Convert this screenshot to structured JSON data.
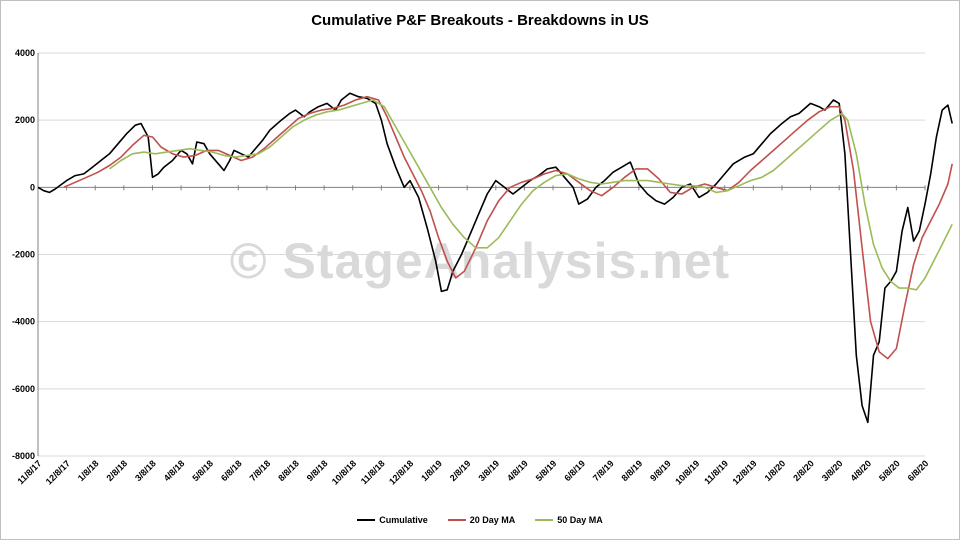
{
  "chart_data": {
    "type": "line",
    "title": "Cumulative P&F Breakouts - Breakdowns in US",
    "watermark": "© StageAnalysis.net",
    "ylim": [
      -8000,
      4000
    ],
    "yticks": [
      4000,
      2000,
      0,
      -2000,
      -4000,
      -6000,
      -8000
    ],
    "ytick_labels": [
      "4000",
      "2000",
      "0",
      "-2000",
      "-4000",
      "-6000",
      "-8000"
    ],
    "grid": true,
    "legend_placement": "bottom",
    "x_dates": [
      "11/8/17",
      "12/8/17",
      "1/8/18",
      "2/8/18",
      "3/8/18",
      "4/8/18",
      "5/8/18",
      "6/8/18",
      "7/8/18",
      "8/8/18",
      "9/8/18",
      "10/8/18",
      "11/8/18",
      "12/8/18",
      "1/8/19",
      "2/8/19",
      "3/8/19",
      "4/8/19",
      "5/8/19",
      "6/8/19",
      "7/8/19",
      "8/8/19",
      "9/8/19",
      "10/8/19",
      "11/8/19",
      "12/8/19",
      "1/8/20",
      "2/8/20",
      "3/8/20",
      "4/8/20",
      "5/8/20",
      "6/8/20"
    ],
    "series": [
      {
        "name": "Cumulative",
        "color": "#000000",
        "points": [
          [
            0,
            0
          ],
          [
            0.2,
            -100
          ],
          [
            0.4,
            -150
          ],
          [
            0.6,
            -50
          ],
          [
            1.0,
            200
          ],
          [
            1.3,
            350
          ],
          [
            1.6,
            400
          ],
          [
            1.9,
            600
          ],
          [
            2.2,
            800
          ],
          [
            2.5,
            1000
          ],
          [
            2.8,
            1300
          ],
          [
            3.1,
            1600
          ],
          [
            3.4,
            1850
          ],
          [
            3.6,
            1900
          ],
          [
            3.85,
            1500
          ],
          [
            4.0,
            300
          ],
          [
            4.2,
            400
          ],
          [
            4.4,
            600
          ],
          [
            4.7,
            800
          ],
          [
            5.0,
            1100
          ],
          [
            5.2,
            1000
          ],
          [
            5.4,
            700
          ],
          [
            5.55,
            1350
          ],
          [
            5.8,
            1300
          ],
          [
            6.0,
            1000
          ],
          [
            6.3,
            700
          ],
          [
            6.5,
            500
          ],
          [
            6.7,
            800
          ],
          [
            6.85,
            1100
          ],
          [
            7.1,
            1000
          ],
          [
            7.35,
            900
          ],
          [
            7.55,
            1100
          ],
          [
            7.85,
            1400
          ],
          [
            8.1,
            1700
          ],
          [
            8.5,
            2000
          ],
          [
            8.8,
            2200
          ],
          [
            9.0,
            2300
          ],
          [
            9.3,
            2100
          ],
          [
            9.5,
            2250
          ],
          [
            9.8,
            2400
          ],
          [
            10.1,
            2500
          ],
          [
            10.4,
            2300
          ],
          [
            10.6,
            2600
          ],
          [
            10.9,
            2800
          ],
          [
            11.2,
            2700
          ],
          [
            11.5,
            2650
          ],
          [
            11.8,
            2500
          ],
          [
            12.0,
            2000
          ],
          [
            12.2,
            1300
          ],
          [
            12.5,
            600
          ],
          [
            12.8,
            0
          ],
          [
            13.0,
            200
          ],
          [
            13.3,
            -300
          ],
          [
            13.6,
            -1200
          ],
          [
            13.9,
            -2200
          ],
          [
            14.1,
            -3100
          ],
          [
            14.3,
            -3050
          ],
          [
            14.5,
            -2500
          ],
          [
            14.8,
            -2000
          ],
          [
            15.1,
            -1400
          ],
          [
            15.4,
            -800
          ],
          [
            15.7,
            -200
          ],
          [
            16.0,
            200
          ],
          [
            16.3,
            0
          ],
          [
            16.6,
            -200
          ],
          [
            16.9,
            0
          ],
          [
            17.2,
            200
          ],
          [
            17.5,
            350
          ],
          [
            17.8,
            550
          ],
          [
            18.1,
            600
          ],
          [
            18.4,
            300
          ],
          [
            18.7,
            0
          ],
          [
            18.9,
            -500
          ],
          [
            19.2,
            -350
          ],
          [
            19.5,
            0
          ],
          [
            19.8,
            200
          ],
          [
            20.1,
            450
          ],
          [
            20.4,
            600
          ],
          [
            20.7,
            750
          ],
          [
            21.0,
            100
          ],
          [
            21.3,
            -200
          ],
          [
            21.6,
            -400
          ],
          [
            21.9,
            -500
          ],
          [
            22.2,
            -300
          ],
          [
            22.5,
            0
          ],
          [
            22.8,
            100
          ],
          [
            23.1,
            -300
          ],
          [
            23.4,
            -150
          ],
          [
            23.7,
            100
          ],
          [
            24.0,
            400
          ],
          [
            24.3,
            700
          ],
          [
            24.7,
            900
          ],
          [
            25.0,
            1000
          ],
          [
            25.3,
            1300
          ],
          [
            25.6,
            1600
          ],
          [
            26.0,
            1900
          ],
          [
            26.3,
            2100
          ],
          [
            26.6,
            2200
          ],
          [
            27.0,
            2500
          ],
          [
            27.3,
            2400
          ],
          [
            27.5,
            2300
          ],
          [
            27.8,
            2600
          ],
          [
            28.0,
            2500
          ],
          [
            28.2,
            1000
          ],
          [
            28.4,
            -2000
          ],
          [
            28.6,
            -5000
          ],
          [
            28.8,
            -6500
          ],
          [
            29.0,
            -7000
          ],
          [
            29.2,
            -5000
          ],
          [
            29.4,
            -4600
          ],
          [
            29.6,
            -3000
          ],
          [
            29.8,
            -2800
          ],
          [
            30.0,
            -2500
          ],
          [
            30.2,
            -1300
          ],
          [
            30.4,
            -600
          ],
          [
            30.6,
            -1600
          ],
          [
            30.8,
            -1300
          ],
          [
            31.0,
            -500
          ],
          [
            31.2,
            400
          ],
          [
            31.4,
            1500
          ],
          [
            31.6,
            2300
          ],
          [
            31.8,
            2450
          ],
          [
            31.95,
            1900
          ]
        ]
      },
      {
        "name": "20 Day MA",
        "color": "#c0504d",
        "points": [
          [
            0.9,
            0
          ],
          [
            1.3,
            150
          ],
          [
            1.7,
            300
          ],
          [
            2.1,
            450
          ],
          [
            2.5,
            650
          ],
          [
            2.9,
            900
          ],
          [
            3.3,
            1250
          ],
          [
            3.7,
            1550
          ],
          [
            4.0,
            1500
          ],
          [
            4.3,
            1200
          ],
          [
            4.7,
            1000
          ],
          [
            5.1,
            900
          ],
          [
            5.5,
            950
          ],
          [
            5.9,
            1100
          ],
          [
            6.3,
            1100
          ],
          [
            6.7,
            950
          ],
          [
            7.1,
            800
          ],
          [
            7.5,
            900
          ],
          [
            7.9,
            1150
          ],
          [
            8.3,
            1450
          ],
          [
            8.7,
            1750
          ],
          [
            9.1,
            2050
          ],
          [
            9.5,
            2200
          ],
          [
            9.9,
            2300
          ],
          [
            10.3,
            2350
          ],
          [
            10.7,
            2450
          ],
          [
            11.1,
            2600
          ],
          [
            11.5,
            2700
          ],
          [
            11.9,
            2600
          ],
          [
            12.2,
            2100
          ],
          [
            12.5,
            1500
          ],
          [
            12.8,
            900
          ],
          [
            13.1,
            400
          ],
          [
            13.4,
            -100
          ],
          [
            13.7,
            -700
          ],
          [
            14.0,
            -1500
          ],
          [
            14.3,
            -2200
          ],
          [
            14.6,
            -2700
          ],
          [
            14.9,
            -2500
          ],
          [
            15.3,
            -1800
          ],
          [
            15.7,
            -1000
          ],
          [
            16.1,
            -400
          ],
          [
            16.5,
            0
          ],
          [
            16.9,
            150
          ],
          [
            17.3,
            250
          ],
          [
            17.7,
            400
          ],
          [
            18.1,
            500
          ],
          [
            18.5,
            400
          ],
          [
            18.9,
            150
          ],
          [
            19.3,
            -100
          ],
          [
            19.7,
            -250
          ],
          [
            20.1,
            0
          ],
          [
            20.5,
            300
          ],
          [
            20.9,
            550
          ],
          [
            21.3,
            550
          ],
          [
            21.7,
            250
          ],
          [
            22.1,
            -150
          ],
          [
            22.5,
            -200
          ],
          [
            22.9,
            0
          ],
          [
            23.3,
            100
          ],
          [
            23.7,
            0
          ],
          [
            24.1,
            -100
          ],
          [
            24.5,
            150
          ],
          [
            24.9,
            500
          ],
          [
            25.3,
            800
          ],
          [
            25.7,
            1100
          ],
          [
            26.1,
            1400
          ],
          [
            26.5,
            1700
          ],
          [
            26.9,
            2000
          ],
          [
            27.3,
            2250
          ],
          [
            27.7,
            2400
          ],
          [
            28.0,
            2400
          ],
          [
            28.2,
            2000
          ],
          [
            28.5,
            500
          ],
          [
            28.8,
            -1800
          ],
          [
            29.1,
            -4000
          ],
          [
            29.4,
            -4900
          ],
          [
            29.7,
            -5100
          ],
          [
            30.0,
            -4800
          ],
          [
            30.3,
            -3500
          ],
          [
            30.6,
            -2300
          ],
          [
            30.9,
            -1500
          ],
          [
            31.2,
            -1000
          ],
          [
            31.5,
            -500
          ],
          [
            31.8,
            100
          ],
          [
            31.95,
            700
          ]
        ]
      },
      {
        "name": "50 Day MA",
        "color": "#9bbb59",
        "points": [
          [
            2.5,
            550
          ],
          [
            2.9,
            800
          ],
          [
            3.3,
            1000
          ],
          [
            3.7,
            1050
          ],
          [
            4.1,
            1000
          ],
          [
            4.5,
            1050
          ],
          [
            4.9,
            1100
          ],
          [
            5.3,
            1150
          ],
          [
            5.7,
            1100
          ],
          [
            6.1,
            1050
          ],
          [
            6.5,
            950
          ],
          [
            6.9,
            900
          ],
          [
            7.3,
            950
          ],
          [
            7.7,
            1000
          ],
          [
            8.1,
            1200
          ],
          [
            8.5,
            1500
          ],
          [
            8.9,
            1800
          ],
          [
            9.3,
            2000
          ],
          [
            9.7,
            2150
          ],
          [
            10.1,
            2250
          ],
          [
            10.5,
            2300
          ],
          [
            10.9,
            2400
          ],
          [
            11.3,
            2500
          ],
          [
            11.7,
            2600
          ],
          [
            12.1,
            2400
          ],
          [
            12.5,
            1800
          ],
          [
            12.9,
            1200
          ],
          [
            13.3,
            600
          ],
          [
            13.7,
            0
          ],
          [
            14.1,
            -600
          ],
          [
            14.5,
            -1100
          ],
          [
            14.9,
            -1500
          ],
          [
            15.3,
            -1800
          ],
          [
            15.7,
            -1800
          ],
          [
            16.1,
            -1500
          ],
          [
            16.5,
            -1000
          ],
          [
            16.9,
            -500
          ],
          [
            17.3,
            -100
          ],
          [
            17.7,
            150
          ],
          [
            18.1,
            350
          ],
          [
            18.5,
            400
          ],
          [
            18.9,
            250
          ],
          [
            19.3,
            150
          ],
          [
            19.7,
            100
          ],
          [
            20.1,
            150
          ],
          [
            20.5,
            200
          ],
          [
            20.9,
            200
          ],
          [
            21.3,
            200
          ],
          [
            21.7,
            150
          ],
          [
            22.1,
            100
          ],
          [
            22.5,
            50
          ],
          [
            22.9,
            50
          ],
          [
            23.3,
            0
          ],
          [
            23.7,
            -150
          ],
          [
            24.1,
            -100
          ],
          [
            24.5,
            50
          ],
          [
            24.9,
            200
          ],
          [
            25.3,
            300
          ],
          [
            25.7,
            500
          ],
          [
            26.1,
            800
          ],
          [
            26.5,
            1100
          ],
          [
            26.9,
            1400
          ],
          [
            27.3,
            1700
          ],
          [
            27.7,
            2000
          ],
          [
            28.1,
            2200
          ],
          [
            28.3,
            2000
          ],
          [
            28.6,
            1000
          ],
          [
            28.9,
            -500
          ],
          [
            29.2,
            -1700
          ],
          [
            29.5,
            -2400
          ],
          [
            29.8,
            -2800
          ],
          [
            30.1,
            -3000
          ],
          [
            30.4,
            -3000
          ],
          [
            30.7,
            -3050
          ],
          [
            31.0,
            -2700
          ],
          [
            31.3,
            -2200
          ],
          [
            31.6,
            -1700
          ],
          [
            31.95,
            -1100
          ]
        ]
      }
    ]
  }
}
